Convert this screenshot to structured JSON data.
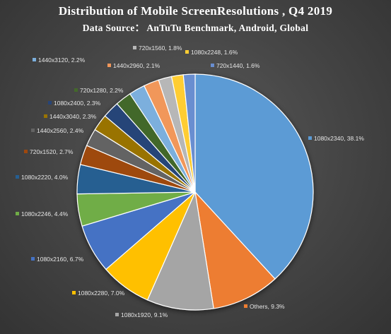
{
  "chart_data": {
    "type": "pie",
    "title": "Distribution of Mobile ScreenResolutions , Q4 2019",
    "subtitle": "Data Source： AnTuTu Benchmark, Android, Global",
    "slices": [
      {
        "label": "1080x2340, 38.1%",
        "value": 38.1,
        "color": "#5B9BD5"
      },
      {
        "label": "Others, 9.3%",
        "value": 9.3,
        "color": "#ED7D31"
      },
      {
        "label": "1080x1920, 9.1%",
        "value": 9.1,
        "color": "#A5A5A5"
      },
      {
        "label": "1080x2280, 7.0%",
        "value": 7.0,
        "color": "#FFC000"
      },
      {
        "label": "1080x2160, 6.7%",
        "value": 6.7,
        "color": "#4472C4"
      },
      {
        "label": "1080x2246, 4.4%",
        "value": 4.4,
        "color": "#70AD47"
      },
      {
        "label": "1080x2220, 4.0%",
        "value": 4.0,
        "color": "#255E91"
      },
      {
        "label": "720x1520, 2.7%",
        "value": 2.7,
        "color": "#9E480E"
      },
      {
        "label": "1440x2560, 2.4%",
        "value": 2.4,
        "color": "#636363"
      },
      {
        "label": "1440x3040, 2.3%",
        "value": 2.3,
        "color": "#997300"
      },
      {
        "label": "1080x2400, 2.3%",
        "value": 2.3,
        "color": "#264478"
      },
      {
        "label": "720x1280, 2.2%",
        "value": 2.2,
        "color": "#43682B"
      },
      {
        "label": "1440x3120, 2.2%",
        "value": 2.2,
        "color": "#7CAFDD"
      },
      {
        "label": "1440x2960, 2.1%",
        "value": 2.1,
        "color": "#F1975A"
      },
      {
        "label": "720x1560, 1.8%",
        "value": 1.8,
        "color": "#B7B7B7"
      },
      {
        "label": "1080x2248, 1.6%",
        "value": 1.6,
        "color": "#FFCD33"
      },
      {
        "label": "720x1440, 1.6%",
        "value": 1.6,
        "color": "#698ED0"
      }
    ],
    "legend": "none",
    "start_angle": "12 o'clock",
    "direction": "clockwise"
  }
}
